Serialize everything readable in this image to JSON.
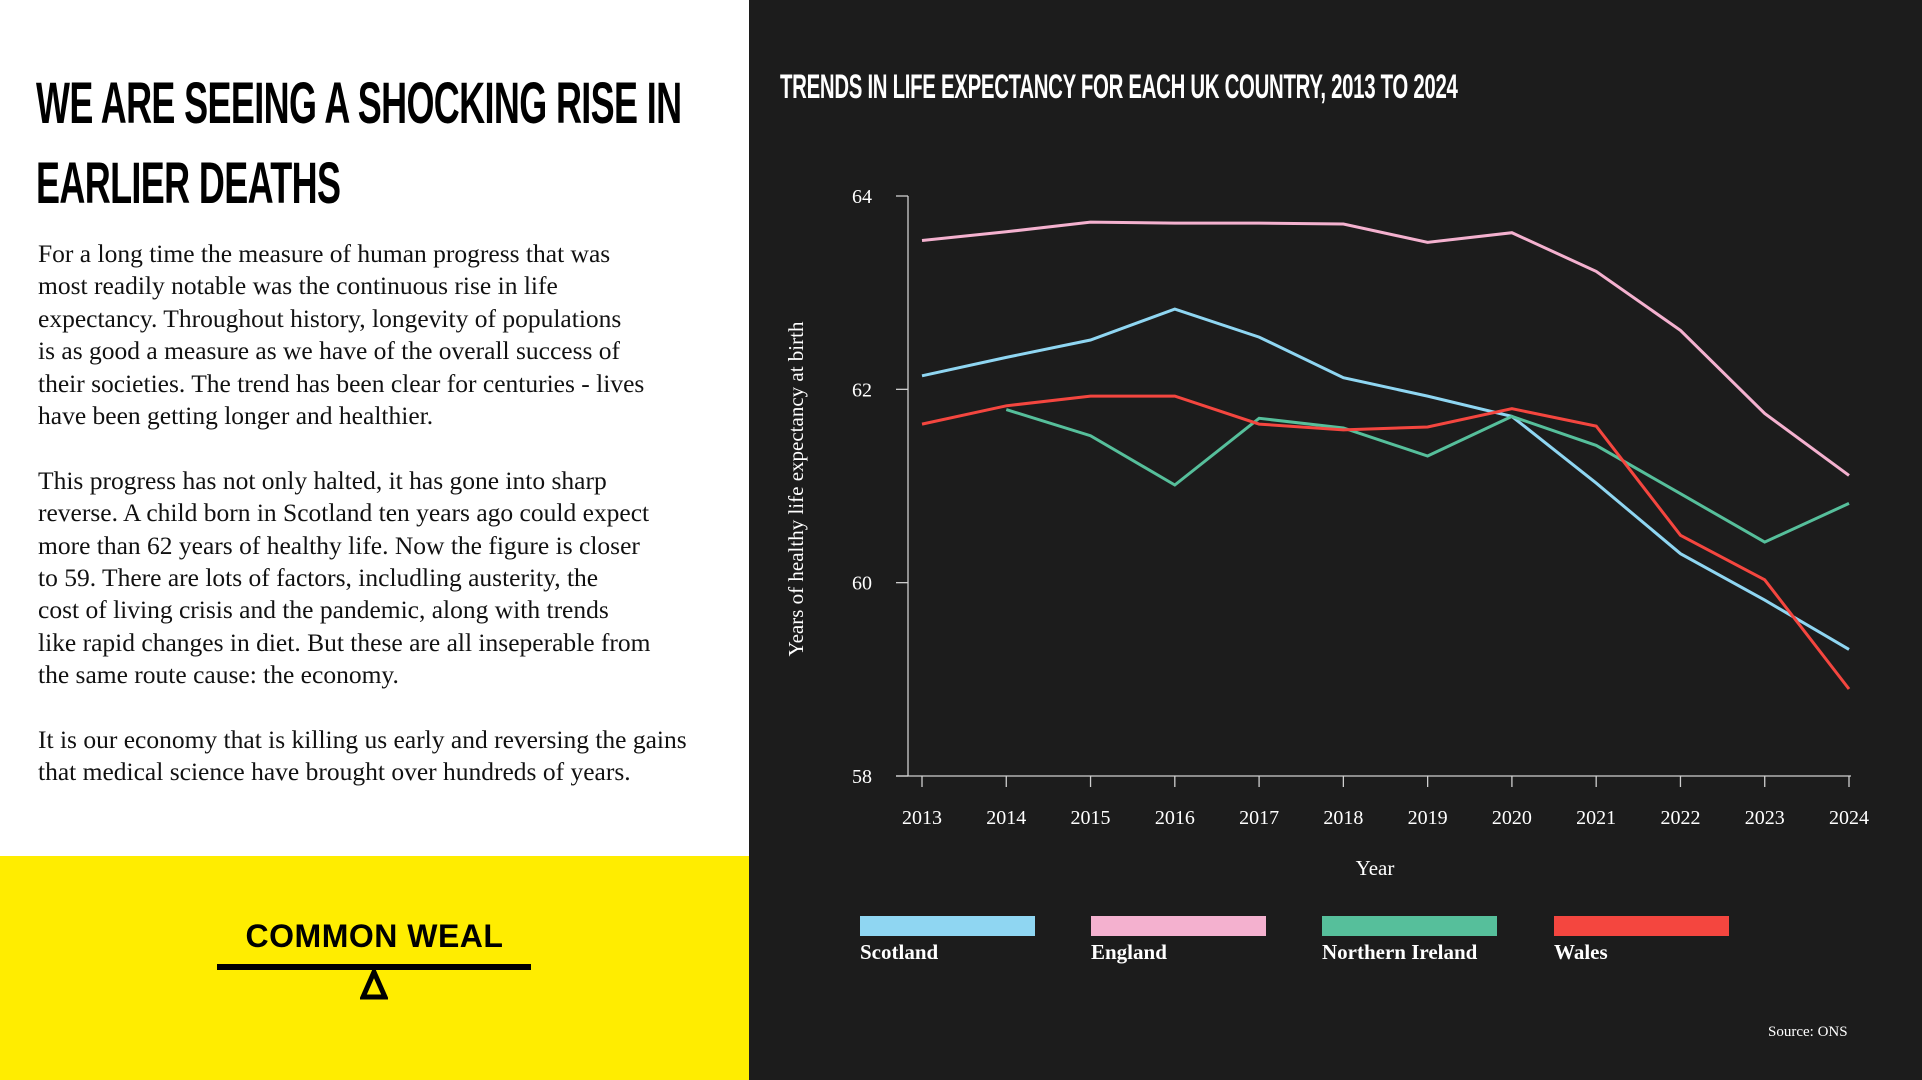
{
  "left_panel": {
    "headline_lines": [
      "WE ARE SEEING A SHOCKING RISE IN",
      "EARLIER DEATHS"
    ],
    "paragraphs": [
      "For a long time the measure of human progress that was\nmost readily notable was the continuous rise in life\nexpectancy. Throughout history, longevity of populations\nis as good a measure as we have of the overall success of\ntheir societies. The trend has been clear for centuries - lives\nhave been getting longer and healthier.",
      "This progress has not only halted, it has gone into sharp\nreverse. A child born in Scotland ten years ago could expect\nmore than 62 years of healthy life. Now the figure is closer\nto 59. There are lots of factors, includling austerity, the\ncost of living crisis and the pandemic, along with trends\nlike rapid changes in diet. But these are all inseperable from\nthe same route cause: the economy.",
      "It is our economy that is killing us early and reversing the gains\nthat medical science have brought over hundreds of years."
    ],
    "logo_text": "COMMON WEAL",
    "logo_icon": "seesaw-fulcrum-icon",
    "accent_color": "#ffed00"
  },
  "source": "Source: ONS",
  "chart_data": {
    "type": "line",
    "title": "TRENDS IN LIFE EXPECTANCY FOR EACH UK COUNTRY, 2013 TO 2024",
    "xlabel": "Year",
    "ylabel": "Years of healthy life expectancy at birth",
    "x": [
      "2013",
      "2014",
      "2015",
      "2016",
      "2017",
      "2018",
      "2019",
      "2020",
      "2021",
      "2022",
      "2023",
      "2024"
    ],
    "yticks": [
      "58",
      "60",
      "62",
      "64"
    ],
    "ylim": [
      58,
      64
    ],
    "grid": false,
    "legend_position": "bottom",
    "series": [
      {
        "name": "Scotland",
        "color": "#8fd6f2",
        "values": [
          62.14,
          62.33,
          62.51,
          62.83,
          62.54,
          62.12,
          61.93,
          61.72,
          61.03,
          60.3,
          59.82,
          59.31
        ]
      },
      {
        "name": "England",
        "color": "#f4b1cf",
        "values": [
          63.54,
          63.63,
          63.73,
          63.72,
          63.72,
          63.71,
          63.52,
          63.62,
          63.22,
          62.61,
          61.75,
          61.11
        ]
      },
      {
        "name": "Northern Ireland",
        "color": "#56bf9b",
        "values": [
          null,
          61.79,
          61.52,
          61.01,
          61.7,
          61.6,
          61.31,
          61.72,
          61.42,
          60.92,
          60.42,
          60.82
        ]
      },
      {
        "name": "Wales",
        "color": "#f4463f",
        "values": [
          61.64,
          61.83,
          61.93,
          61.93,
          61.64,
          61.58,
          61.61,
          61.8,
          61.62,
          60.49,
          60.03,
          58.9
        ]
      }
    ]
  }
}
